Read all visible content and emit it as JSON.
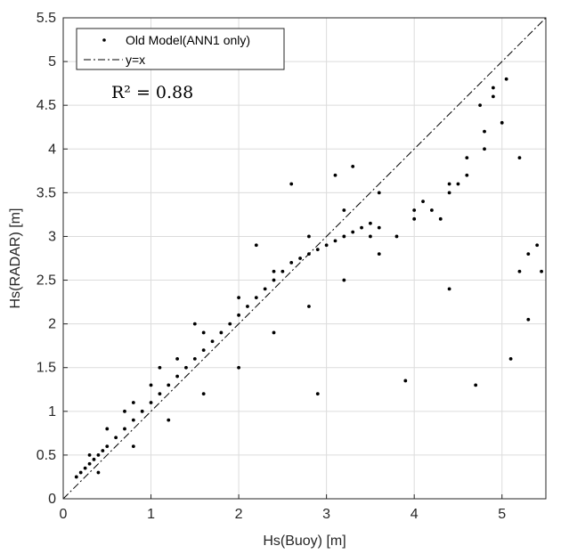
{
  "chart_data": {
    "type": "scatter",
    "xlabel": "Hs(Buoy) [m]",
    "ylabel": "Hs(RADAR) [m]",
    "xlim": [
      0,
      5.5
    ],
    "ylim": [
      0,
      5.5
    ],
    "xticks": [
      "0",
      "1",
      "2",
      "3",
      "4",
      "5"
    ],
    "yticks": [
      "0",
      "0.5",
      "1",
      "1.5",
      "2",
      "2.5",
      "3",
      "3.5",
      "4",
      "4.5",
      "5",
      "5.5"
    ],
    "grid": true,
    "legend_position": "top-left",
    "series": [
      {
        "name": "Old Model(ANN1 only)",
        "marker": "dot",
        "color": "#000000",
        "x": [
          0.15,
          0.2,
          0.25,
          0.3,
          0.35,
          0.4,
          0.45,
          0.5,
          0.6,
          0.7,
          0.8,
          0.9,
          1.0,
          1.1,
          1.2,
          1.3,
          1.4,
          1.5,
          1.6,
          1.7,
          1.8,
          1.9,
          2.0,
          2.1,
          2.2,
          2.3,
          2.4,
          2.5,
          2.6,
          2.7,
          2.8,
          2.9,
          3.0,
          3.1,
          3.2,
          3.3,
          3.4,
          3.5,
          3.6,
          3.8,
          4.0,
          4.2,
          4.4,
          4.6,
          4.8,
          5.0,
          5.2,
          5.4,
          0.3,
          0.5,
          0.7,
          1.0,
          1.3,
          1.6,
          2.0,
          2.4,
          2.8,
          3.2,
          3.6,
          4.0,
          4.4,
          4.8,
          5.2,
          0.4,
          0.8,
          1.2,
          1.6,
          2.0,
          2.4,
          2.8,
          3.2,
          3.6,
          4.1,
          4.5,
          4.9,
          5.3,
          4.6,
          4.9,
          5.05,
          4.3,
          4.75,
          3.3,
          3.1,
          2.6,
          4.4,
          5.1,
          2.2,
          3.5,
          1.5,
          1.1,
          0.8,
          2.9,
          3.9,
          4.7,
          5.3,
          5.45
        ],
        "y": [
          0.25,
          0.3,
          0.35,
          0.4,
          0.45,
          0.5,
          0.55,
          0.6,
          0.7,
          0.8,
          0.9,
          1.0,
          1.1,
          1.2,
          1.3,
          1.4,
          1.5,
          1.6,
          1.7,
          1.8,
          1.9,
          2.0,
          2.1,
          2.2,
          2.3,
          2.4,
          2.5,
          2.6,
          2.7,
          2.75,
          2.8,
          2.85,
          2.9,
          2.95,
          3.0,
          3.05,
          3.1,
          3.15,
          3.1,
          3.0,
          3.2,
          3.3,
          3.5,
          3.7,
          4.0,
          4.3,
          3.9,
          2.9,
          0.5,
          0.8,
          1.0,
          1.3,
          1.6,
          1.9,
          2.3,
          2.6,
          3.0,
          3.3,
          3.5,
          3.3,
          3.6,
          4.2,
          2.6,
          0.3,
          0.6,
          0.9,
          1.2,
          1.5,
          1.9,
          2.2,
          2.5,
          2.8,
          3.4,
          3.6,
          4.7,
          2.8,
          3.9,
          4.6,
          4.8,
          3.2,
          4.5,
          3.8,
          3.7,
          3.6,
          2.4,
          1.6,
          2.9,
          3.0,
          2.0,
          1.5,
          1.1,
          1.2,
          1.35,
          1.3,
          2.05,
          2.6
        ]
      },
      {
        "name": "y=x",
        "style": "dash-dot",
        "color": "#000000",
        "x": [
          0,
          5.5
        ],
        "y": [
          0,
          5.5
        ]
      }
    ],
    "annotation": "R² = 0.88"
  }
}
